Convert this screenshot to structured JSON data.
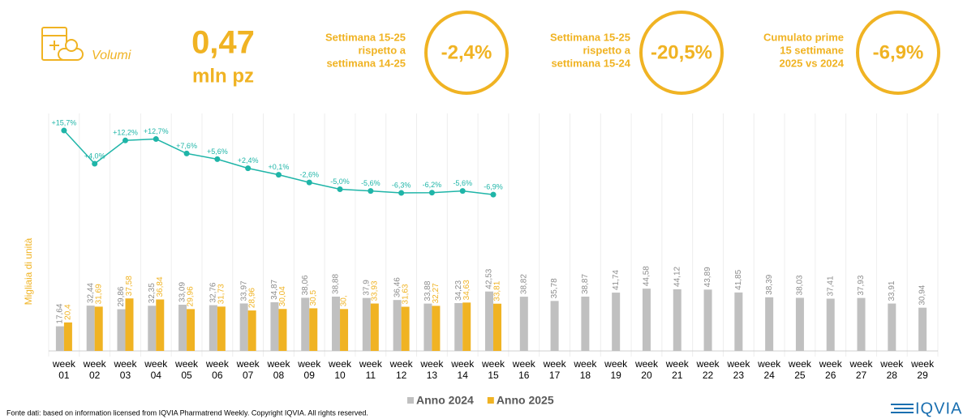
{
  "header": {
    "title": "Volumi",
    "value": "0,47",
    "unit": "mln pz"
  },
  "kpis": [
    {
      "lines": [
        "Settimana 15-25",
        "rispetto a",
        "settimana 14-25"
      ],
      "value": "-2,4%"
    },
    {
      "lines": [
        "Settimana 15-25",
        "rispetto a",
        "settimana 15-24"
      ],
      "value": "-20,5%"
    },
    {
      "lines": [
        "Cumulato prime",
        "15 settimane",
        "2025 vs 2024"
      ],
      "value": "-6,9%"
    }
  ],
  "chart_data": {
    "type": "bar",
    "y_label": "Migliaia di unità",
    "categories": [
      "week 01",
      "week 02",
      "week 03",
      "week 04",
      "week 05",
      "week 06",
      "week 07",
      "week 08",
      "week 09",
      "week 10",
      "week 11",
      "week 12",
      "week 13",
      "week 14",
      "week 15",
      "week 16",
      "week 17",
      "week 18",
      "week 19",
      "week 20",
      "week 21",
      "week 22",
      "week 23",
      "week 24",
      "week 25",
      "week 26",
      "week 27",
      "week 28",
      "week 29"
    ],
    "ylim": [
      0,
      170
    ],
    "y2lim": [
      -20,
      20
    ],
    "legend": "bottom",
    "series": [
      {
        "name": "Anno 2024",
        "color": "#c0c0c0",
        "label_color": "#8c8c8c",
        "values": [
          17.64,
          32.44,
          29.86,
          32.35,
          33.09,
          32.76,
          33.97,
          34.87,
          38.06,
          38.88,
          37.9,
          36.46,
          33.88,
          34.23,
          42.53,
          38.82,
          35.78,
          38.87,
          41.74,
          44.58,
          44.12,
          43.89,
          41.85,
          38.39,
          38.03,
          37.41,
          37.93,
          33.91,
          30.94
        ],
        "value_labels": [
          "17,64",
          "32,44",
          "29,86",
          "32,35",
          "33,09",
          "32,76",
          "33,97",
          "34,87",
          "38,06",
          "38,88",
          "37,9",
          "36,46",
          "33,88",
          "34,23",
          "42,53",
          "38,82",
          "35,78",
          "38,87",
          "41,74",
          "44,58",
          "44,12",
          "43,89",
          "41,85",
          "38,39",
          "38,03",
          "37,41",
          "37,93",
          "33,91",
          "30,94"
        ]
      },
      {
        "name": "Anno 2025",
        "color": "#f0b323",
        "label_color": "#f0b323",
        "values": [
          20.4,
          31.69,
          37.58,
          36.84,
          29.96,
          31.73,
          28.96,
          30.04,
          30.5,
          30,
          33.93,
          31.63,
          32.27,
          34.63,
          33.81,
          null,
          null,
          null,
          null,
          null,
          null,
          null,
          null,
          null,
          null,
          null,
          null,
          null,
          null
        ],
        "value_labels": [
          "20,4",
          "31,69",
          "37,58",
          "36,84",
          "29,96",
          "31,73",
          "28,96",
          "30,04",
          "30,5",
          "30,",
          "33,93",
          "31,63",
          "32,27",
          "34,63",
          "33,81",
          null,
          null,
          null,
          null,
          null,
          null,
          null,
          null,
          null,
          null,
          null,
          null,
          null,
          null
        ]
      },
      {
        "type": "line",
        "axis": "y2",
        "color": "#1fb5a8",
        "values": [
          15.7,
          4.0,
          12.2,
          12.7,
          7.6,
          5.6,
          2.4,
          0.1,
          -2.6,
          -5.0,
          -5.6,
          -6.3,
          -6.2,
          -5.6,
          -6.9,
          null,
          null,
          null,
          null,
          null,
          null,
          null,
          null,
          null,
          null,
          null,
          null,
          null,
          null
        ],
        "value_labels": [
          "+15,7%",
          "+4,0%",
          "+12,2%",
          "+12,7%",
          "+7,6%",
          "+5,6%",
          "+2,4%",
          "+0,1%",
          "-2,6%",
          "-5,0%",
          "-5,6%",
          "-6,3%",
          "-6,2%",
          "-5,6%",
          "-6,9%",
          null,
          null,
          null,
          null,
          null,
          null,
          null,
          null,
          null,
          null,
          null,
          null,
          null,
          null
        ]
      }
    ]
  },
  "footer": {
    "source": "Fonte dati: based on information licensed from IQVIA Pharmatrend Weekly. Copyright IQVIA. All rights reserved.",
    "logo": "IQVIA"
  }
}
